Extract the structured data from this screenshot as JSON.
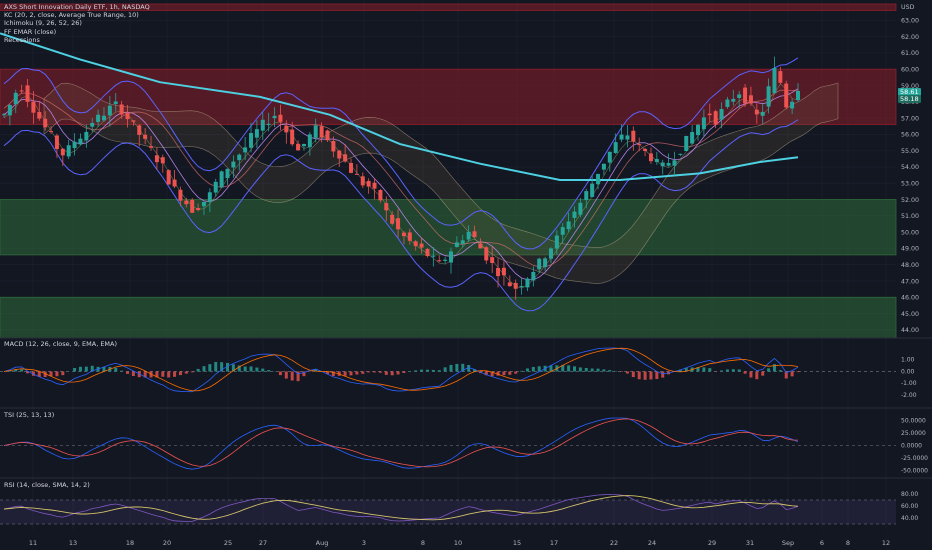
{
  "colors": {
    "background": "#131722",
    "grid": "#1e2230",
    "up": "#26a69a",
    "down": "#ef5350",
    "kc_lines": "#5b62ff",
    "ema200": "#4dd0e1",
    "red_zone": "#8b1e2a",
    "green_zone": "#2e6b3a",
    "macd_line": "#2962ff",
    "signal_line": "#ff6d00",
    "rsi_line": "#d4c36a",
    "rsi_band": "#7e57c2"
  },
  "main_legend": [
    "AXS Short Innovation Daily ETF, 1h, NASDAQ",
    "KC (20, 2, close, Average True Range, 10)",
    "Ichimoku (9, 26, 52, 26)",
    "FF EMAR (close)",
    "Recessions"
  ],
  "pane_titles": {
    "macd": "MACD (12, 26, close, 9, EMA, EMA)",
    "tsi": "TSI (25, 13, 13)",
    "rsi": "RSI (14, close, SMA, 14, 2)"
  },
  "price_tags": {
    "last": "58.61",
    "second": "58.18"
  },
  "chart_data": {
    "type": "candlestick",
    "currency": "USD",
    "ylim": [
      43.5,
      64
    ],
    "y_ticks": [
      "63.00",
      "62.00",
      "61.00",
      "60.00",
      "59.00",
      "58.00",
      "57.00",
      "56.00",
      "55.00",
      "54.00",
      "53.00",
      "52.00",
      "51.00",
      "50.00",
      "49.00",
      "48.00",
      "47.00",
      "46.00",
      "45.00",
      "44.00"
    ],
    "x_ticks": [
      "11",
      "13",
      "18",
      "20",
      "25",
      "27",
      "Aug",
      "3",
      "8",
      "10",
      "15",
      "17",
      "22",
      "24",
      "29",
      "31",
      "Sep",
      "6",
      "8",
      "12"
    ],
    "zones": [
      {
        "color": "red",
        "from": 56.6,
        "to": 60.0
      },
      {
        "color": "red",
        "from": 63.6,
        "to": 64.0
      },
      {
        "color": "green",
        "from": 48.6,
        "to": 52.0
      },
      {
        "color": "green",
        "from": 43.5,
        "to": 46.0
      }
    ],
    "close_path": [
      57.2,
      57.8,
      58.6,
      58.9,
      58.2,
      57.6,
      57.0,
      56.4,
      55.9,
      55.2,
      54.8,
      55.1,
      55.6,
      55.9,
      56.2,
      56.8,
      57.0,
      57.3,
      57.6,
      57.8,
      57.5,
      57.0,
      56.5,
      56.0,
      55.5,
      55.0,
      54.5,
      54.0,
      53.2,
      52.6,
      52.2,
      51.8,
      51.4,
      51.6,
      51.9,
      52.3,
      53.0,
      53.5,
      54.0,
      54.4,
      54.8,
      55.2,
      55.8,
      56.2,
      56.6,
      56.9,
      57.2,
      56.8,
      56.2,
      55.6,
      55.0,
      55.4,
      55.9,
      56.3,
      56.0,
      55.6,
      55.1,
      54.8,
      54.3,
      53.8,
      53.4,
      53.0,
      52.8,
      52.4,
      52.0,
      51.2,
      50.6,
      50.1,
      49.7,
      49.4,
      49.1,
      48.9,
      48.6,
      48.3,
      48.0,
      48.4,
      48.9,
      49.3,
      49.7,
      50.0,
      49.6,
      49.0,
      48.5,
      48.0,
      47.6,
      47.2,
      46.8,
      46.6,
      46.9,
      47.3,
      47.7,
      48.1,
      48.6,
      49.1,
      49.6,
      50.2,
      50.8,
      51.3,
      51.8,
      52.4,
      53.0,
      53.7,
      54.3,
      54.9,
      55.4,
      55.8,
      56.0,
      55.6,
      55.2,
      54.9,
      54.6,
      54.2,
      54.0,
      54.3,
      54.7,
      55.1,
      55.6,
      56.1,
      56.6,
      57.0,
      57.3,
      56.9,
      57.4,
      57.9,
      58.3,
      58.6,
      58.2,
      57.6,
      57.1,
      57.5,
      58.8,
      59.9,
      59.2,
      57.8,
      58.2,
      58.9
    ],
    "ema200": [
      [
        0,
        62.2
      ],
      [
        80,
        60.6
      ],
      [
        160,
        59.2
      ],
      [
        260,
        58.3
      ],
      [
        330,
        57.2
      ],
      [
        400,
        55.4
      ],
      [
        480,
        54.2
      ],
      [
        560,
        53.2
      ],
      [
        620,
        53.2
      ],
      [
        700,
        53.6
      ],
      [
        760,
        54.3
      ],
      [
        798,
        54.6
      ]
    ],
    "macd": {
      "ylim": [
        -2.6,
        2.0
      ],
      "ticks": [
        "1.00",
        "0.00",
        "-1.00",
        "-2.00"
      ]
    },
    "tsi": {
      "ylim": [
        -55,
        55
      ],
      "ticks": [
        "50.0000",
        "25.0000",
        "0.0000",
        "-25.0000",
        "-50.0000"
      ]
    },
    "rsi": {
      "ylim": [
        20,
        90
      ],
      "ticks": [
        "80.00",
        "60.00",
        "40.00"
      ],
      "band": [
        30,
        70
      ]
    }
  }
}
